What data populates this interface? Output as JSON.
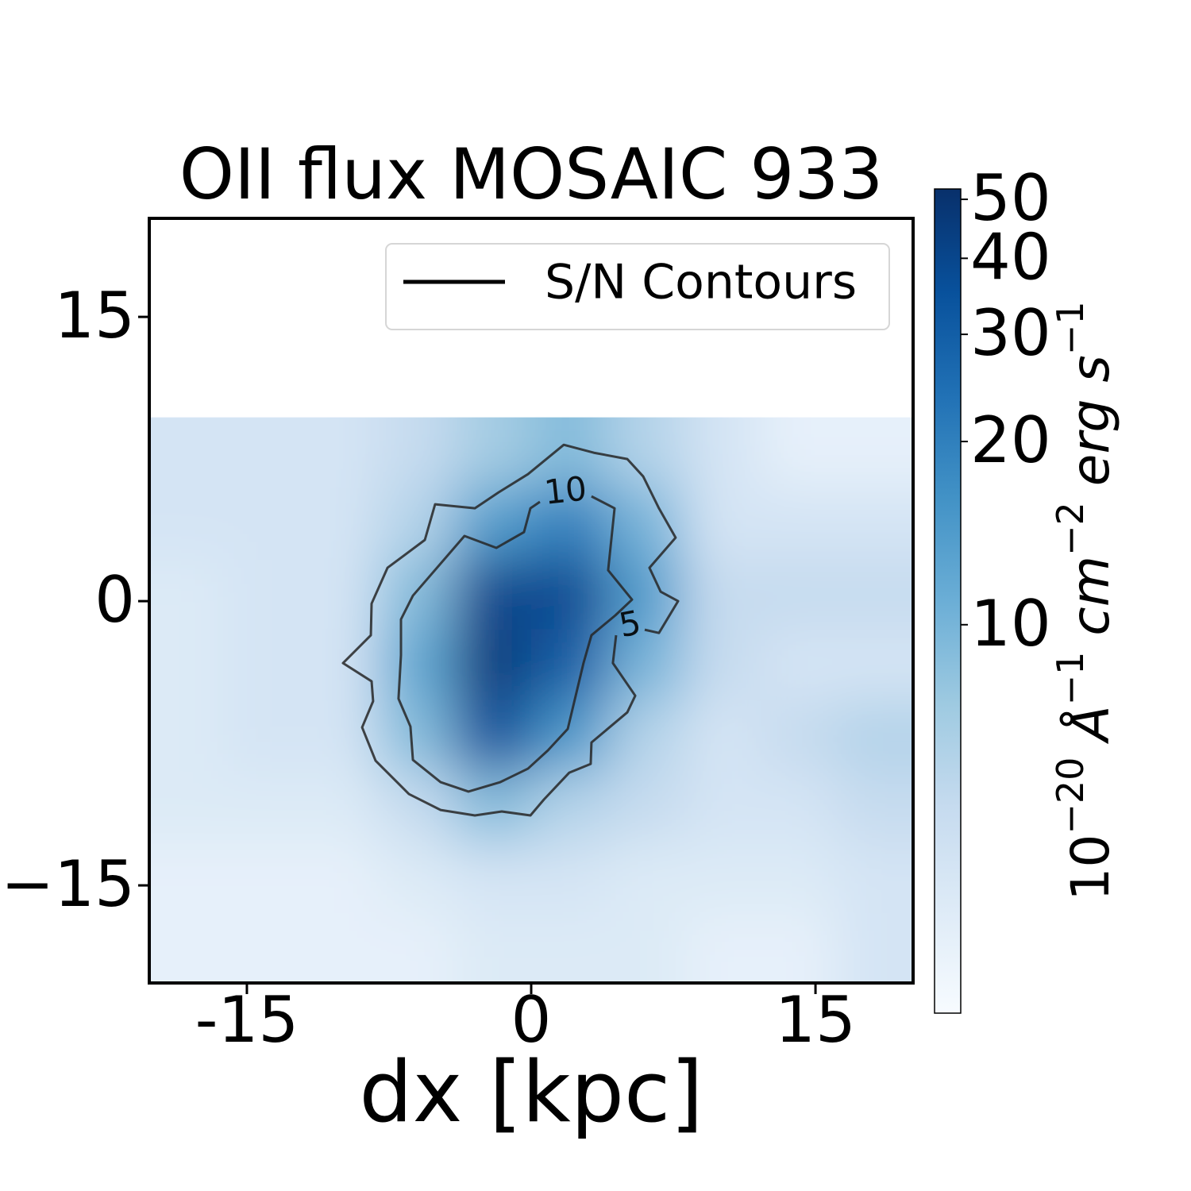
{
  "chart_data": {
    "type": "heatmap",
    "title": "OII flux MOSAIC 933",
    "xlabel": "dx [kpc]",
    "xlim": [
      -20.15,
      20.15
    ],
    "ylim": [
      -20.15,
      20.2
    ],
    "xticks": [
      -15,
      0,
      15
    ],
    "yticks": [
      {
        "value": -15,
        "label": "−15"
      },
      0,
      15
    ],
    "extent": [
      -20.15,
      20.15,
      -20.15,
      9.7
    ],
    "origin": "upper",
    "z": [
      [
        4,
        4,
        4,
        5,
        7,
        9,
        6,
        4,
        3,
        3
      ],
      [
        4,
        4,
        4,
        6,
        14,
        20,
        10,
        4,
        4,
        4
      ],
      [
        3.5,
        4,
        4,
        9,
        40,
        38,
        14,
        5,
        5,
        5
      ],
      [
        3.5,
        4,
        4,
        12,
        45,
        30,
        10,
        5,
        4,
        4
      ],
      [
        3.5,
        4,
        4,
        9,
        35,
        15,
        6,
        4,
        5,
        6
      ],
      [
        3.5,
        3.5,
        3.5,
        5,
        9,
        6,
        5,
        4,
        4,
        5
      ],
      [
        3,
        3,
        3,
        3.5,
        4,
        4,
        3.5,
        3.5,
        3.5,
        4
      ],
      [
        3,
        3,
        3,
        3,
        3.5,
        3.5,
        3.5,
        3,
        3,
        4
      ]
    ],
    "colormap": [
      "#f7fbff",
      "#deebf7",
      "#c6dbef",
      "#9ecae1",
      "#6baed6",
      "#4292c6",
      "#2171b5",
      "#08519c",
      "#08306b"
    ],
    "colorbar": {
      "scale": "log",
      "lim": [
        2.3,
        52
      ],
      "ticks": [
        10,
        20,
        30,
        40,
        50
      ],
      "label": [
        {
          "base": "10",
          "sup": "−20"
        },
        {
          "base": "Å",
          "sup": "−1"
        },
        {
          "base": "cm",
          "sup": "−2"
        },
        {
          "base": "erg s",
          "sup": "−1"
        }
      ]
    },
    "contour_color": "#262626",
    "contours": [
      {
        "level": 5,
        "x": [
          4.48,
          4.31,
          5.49,
          5.07,
          3.18,
          3.14,
          2.01,
          0.67,
          -0.04,
          -1.55,
          -2.97,
          -4.78,
          -6.45,
          -8.21,
          -8.92,
          -8.34,
          -8.42,
          -9.93,
          -8.46,
          -8.42,
          -7.58,
          -5.61,
          -5.07,
          -2.97,
          -1.72,
          -0.17,
          1.72,
          3.31,
          5.07,
          5.91,
          6.74,
          7.62,
          6.24,
          6.83,
          7.75,
          6.74,
          5.99
        ],
        "y": [
          -1.8,
          -3.27,
          -4.99,
          -5.87,
          -7.46,
          -8.59,
          -9.05,
          -10.47,
          -11.31,
          -11.1,
          -11.31,
          -11.02,
          -10.18,
          -8.42,
          -6.66,
          -5.28,
          -4.23,
          -3.27,
          -1.8,
          -0.13,
          1.76,
          3.23,
          5.11,
          4.9,
          5.74,
          6.7,
          8.25,
          7.83,
          7.5,
          6.58,
          4.9,
          3.35,
          1.76,
          0.5,
          0,
          -1.68,
          -1.51
        ]
      },
      {
        "level": 10,
        "x": [
          3.18,
          4.4,
          4.06,
          5.32,
          4.44,
          3.18,
          2.76,
          1.93,
          0.88,
          -0.17,
          -1.63,
          -3.31,
          -4.78,
          -6.24,
          -6.37,
          -7.0,
          -6.87,
          -6.87,
          -6.24,
          -3.52,
          -1.84,
          -0.38,
          -0.04,
          0.46
        ],
        "y": [
          5.53,
          4.9,
          1.63,
          0.08,
          -0.75,
          -1.8,
          -3.27,
          -6.74,
          -7.88,
          -8.84,
          -9.55,
          -10.05,
          -9.55,
          -8.38,
          -6.62,
          -5.15,
          -2.85,
          -0.96,
          0.29,
          3.44,
          2.81,
          3.64,
          4.9,
          5.24
        ]
      }
    ],
    "legend": {
      "label": "S/N Contours",
      "loc": "upper right"
    }
  }
}
